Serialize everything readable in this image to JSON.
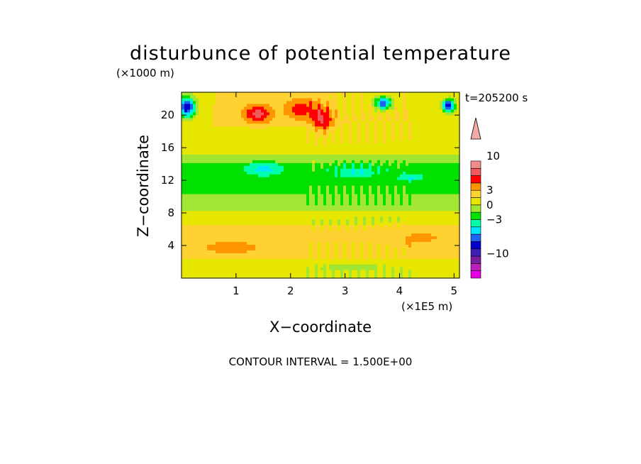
{
  "chart_data": {
    "type": "heatmap",
    "title": "disturbunce of potential temperature",
    "xlabel": "X−coordinate",
    "ylabel": "Z−coordinate",
    "x_unit": "(×1E5 m)",
    "y_unit": "(×1000 m)",
    "time_label": "t=205200 s",
    "footer": "CONTOUR INTERVAL = 1.500E+00",
    "xlim": [
      0,
      5.1
    ],
    "ylim": [
      0,
      22.8
    ],
    "x_ticks": [
      1,
      2,
      3,
      4,
      5
    ],
    "y_ticks": [
      4,
      8,
      12,
      16,
      20
    ],
    "x_tick_labels": [
      "1",
      "2",
      "3",
      "4",
      "5"
    ],
    "y_tick_labels": [
      "4",
      "8",
      "12",
      "16",
      "20"
    ],
    "colorbar": {
      "levels": [
        -15,
        -13.5,
        -12,
        -10.5,
        -9,
        -7.5,
        -6,
        -4.5,
        -3,
        -1.5,
        0,
        1.5,
        3,
        4.5,
        6,
        7.5,
        9,
        10.5,
        12,
        13.5,
        15
      ],
      "colors": [
        "#e600e6",
        "#be1ebe",
        "#7a1e9e",
        "#3c1eb4",
        "#0000c8",
        "#1e64f0",
        "#00e6ff",
        "#00ffaa",
        "#00e100",
        "#a0e632",
        "#e6e600",
        "#ffd232",
        "#ff9600",
        "#ff0000",
        "#f05a5a",
        "#f08c8c",
        "#f5aaaa"
      ],
      "tick_labels": [
        {
          "value": 10,
          "label": "10"
        },
        {
          "value": 3,
          "label": "3"
        },
        {
          "value": 0,
          "label": "0"
        },
        {
          "value": -3,
          "label": "−3"
        },
        {
          "value": -10,
          "label": "−10"
        }
      ]
    },
    "bands": [
      {
        "z_min": 0,
        "z_max": 2.5,
        "value": 0.75
      },
      {
        "z_min": 2.5,
        "z_max": 6.5,
        "value": 2.0
      },
      {
        "z_min": 6.5,
        "z_max": 8.2,
        "value": 0.8
      },
      {
        "z_min": 8.2,
        "z_max": 9.0,
        "value": -0.5
      },
      {
        "z_min": 9.0,
        "z_max": 10.4,
        "value": -1.3
      },
      {
        "z_min": 10.4,
        "z_max": 14.0,
        "value": -2.0
      },
      {
        "z_min": 14.0,
        "z_max": 15.2,
        "value": -0.8
      },
      {
        "z_min": 15.2,
        "z_max": 18.5,
        "value": 1.0
      },
      {
        "z_min": 18.5,
        "z_max": 22.8,
        "value": 1.5
      }
    ],
    "features": [
      {
        "x": 1.4,
        "z": 20.2,
        "rx": 0.35,
        "rz": 1.5,
        "value": 6.5
      },
      {
        "x": 2.2,
        "z": 20.8,
        "rx": 0.4,
        "rz": 1.8,
        "value": 5.5
      },
      {
        "x": 2.6,
        "z": 19.5,
        "rx": 0.25,
        "rz": 2.0,
        "value": 6.0
      },
      {
        "x": 0.1,
        "z": 21.0,
        "rx": 0.2,
        "rz": 1.6,
        "value": -9.0
      },
      {
        "x": 3.7,
        "z": 21.5,
        "rx": 0.2,
        "rz": 1.0,
        "value": -7.0
      },
      {
        "x": 4.9,
        "z": 21.2,
        "rx": 0.15,
        "rz": 1.0,
        "value": -9.0
      },
      {
        "x": 1.5,
        "z": 13.4,
        "rx": 0.45,
        "rz": 1.0,
        "value": -5.0
      },
      {
        "x": 3.2,
        "z": 13.0,
        "rx": 0.5,
        "rz": 0.9,
        "value": -4.5
      },
      {
        "x": 4.2,
        "z": 12.4,
        "rx": 0.3,
        "rz": 0.6,
        "value": -4.8
      },
      {
        "x": 0.9,
        "z": 3.8,
        "rx": 0.9,
        "rz": 1.3,
        "value": 3.5
      },
      {
        "x": 4.4,
        "z": 5.0,
        "rx": 0.8,
        "rz": 1.5,
        "value": 3.2
      },
      {
        "x": 3.1,
        "z": 1.3,
        "rx": 1.1,
        "rz": 0.7,
        "value": -0.6
      }
    ]
  }
}
